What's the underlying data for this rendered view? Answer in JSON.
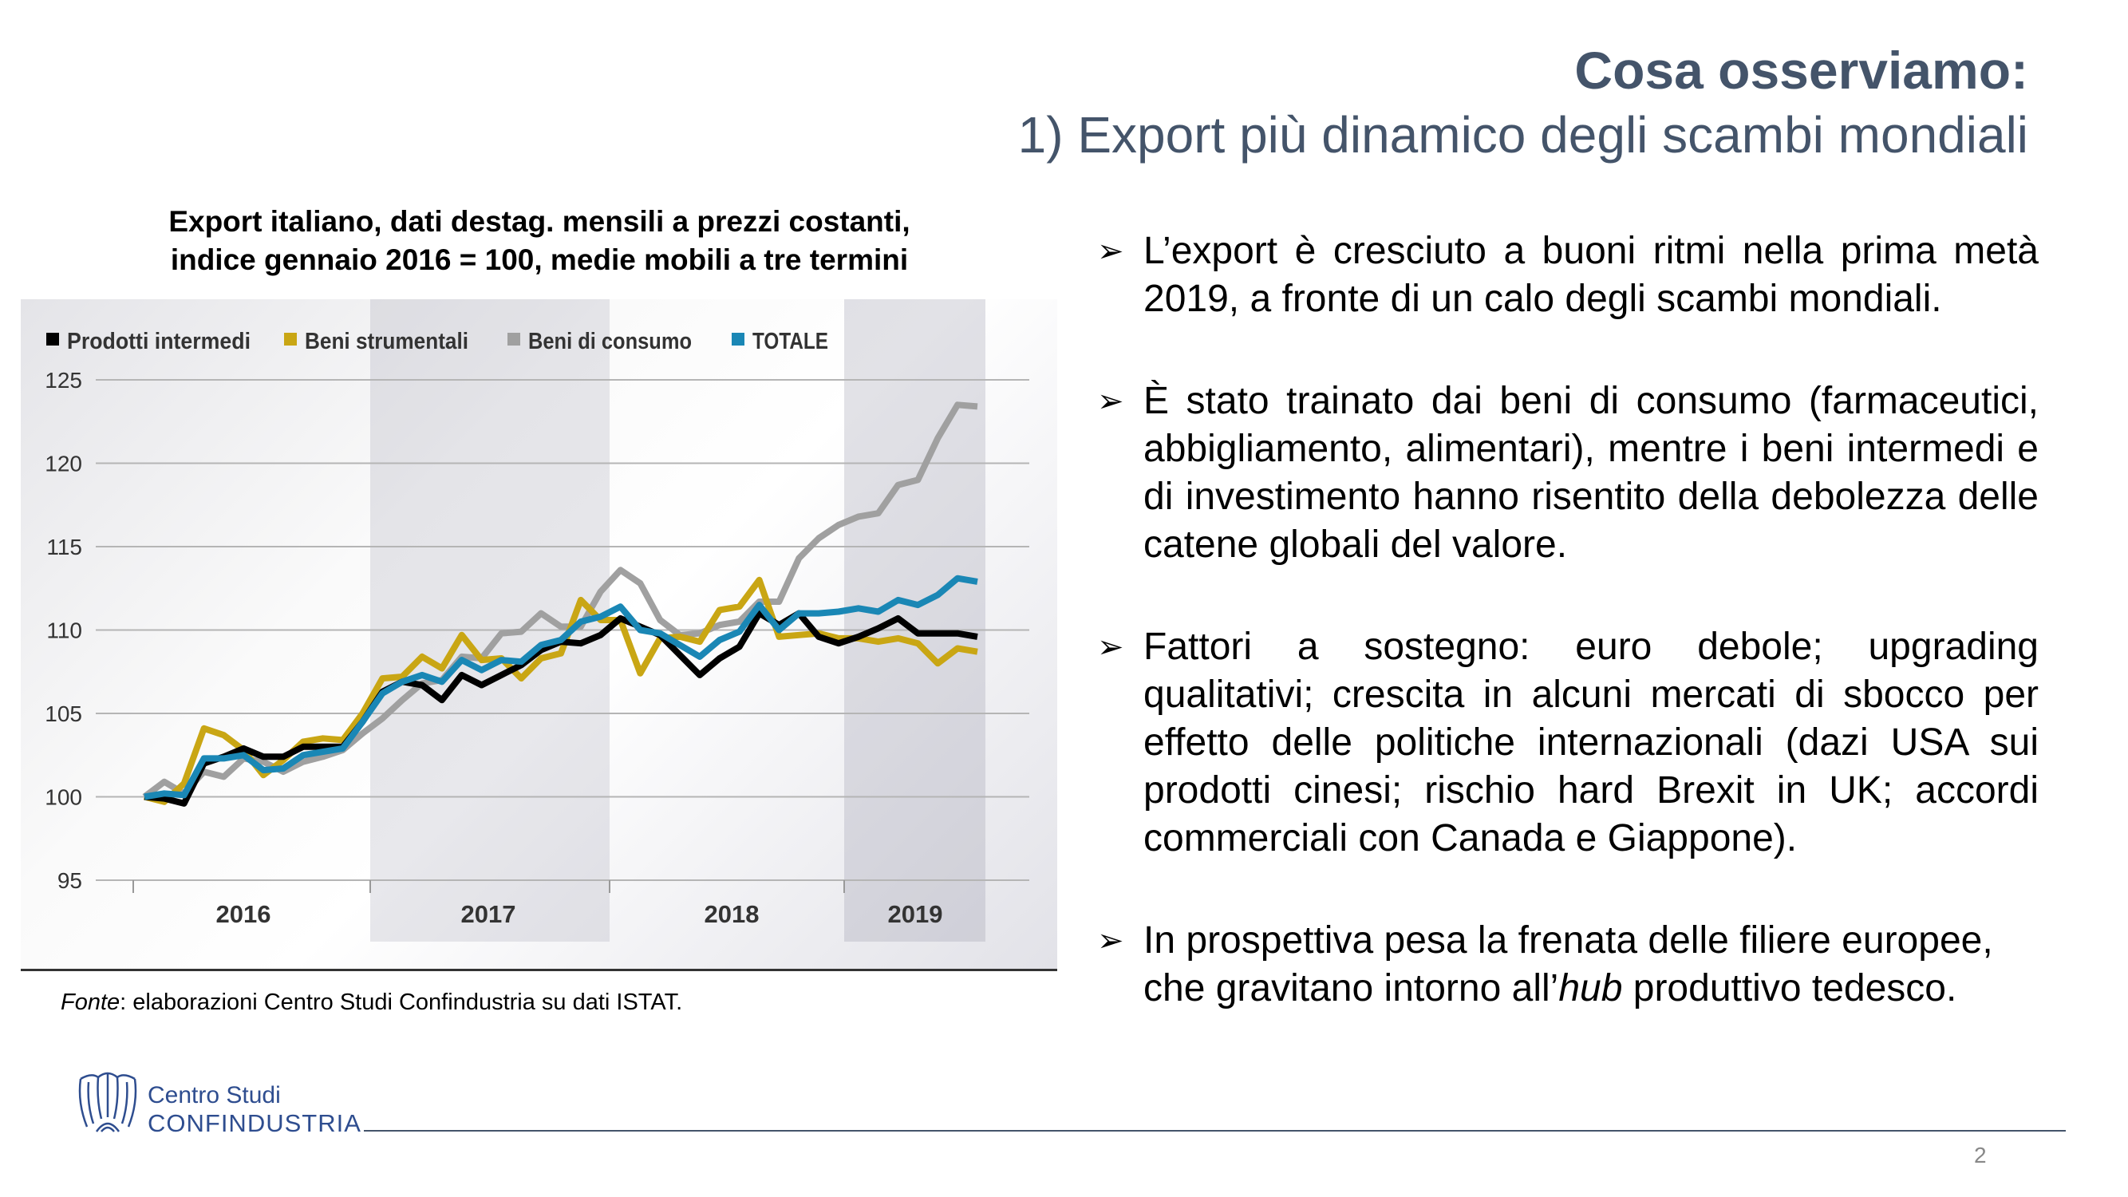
{
  "header": {
    "title": "Cosa osserviamo:",
    "subtitle": "1) Export più dinamico degli scambi mondiali"
  },
  "chart_title": {
    "line1": "Export italiano, dati destag. mensili a prezzi costanti,",
    "line2": "indice gennaio 2016 = 100, medie mobili a tre termini"
  },
  "chart_data": {
    "type": "line",
    "title": "Export italiano, dati destag. mensili a prezzi costanti, indice gennaio 2016 = 100, medie mobili a tre termini",
    "xlabel": "",
    "ylabel": "",
    "x_start": "2016-01",
    "frequency": "monthly",
    "year_labels": [
      "2016",
      "2017",
      "2018",
      "2019"
    ],
    "yticks": [
      125,
      120,
      115,
      110,
      105,
      100,
      95
    ],
    "ylim": [
      95,
      125
    ],
    "grid": true,
    "legend_position": "top-left",
    "series": [
      {
        "name": "Prodotti intermedi",
        "color": "#000000",
        "values": [
          100,
          99.9,
          99.6,
          102.0,
          102.4,
          102.9,
          102.4,
          102.4,
          103.0,
          103.0,
          103.0,
          104.5,
          106.3,
          106.9,
          106.7,
          105.8,
          107.3,
          106.7,
          107.3,
          107.9,
          108.8,
          109.3,
          109.2,
          109.7,
          110.7,
          110.2,
          109.7,
          108.5,
          107.3,
          108.3,
          109.0,
          111.0,
          110.3,
          111.0,
          109.6,
          109.2,
          109.6,
          110.1,
          110.7,
          109.8,
          109.8,
          109.8,
          109.6
        ]
      },
      {
        "name": "Beni strumentali",
        "color": "#c9a614",
        "values": [
          100,
          99.7,
          100.8,
          104.1,
          103.7,
          102.8,
          101.3,
          102.2,
          103.3,
          103.5,
          103.4,
          105.0,
          107.1,
          107.2,
          108.4,
          107.7,
          109.7,
          108.2,
          108.3,
          107.1,
          108.3,
          108.6,
          111.8,
          110.6,
          110.6,
          107.4,
          109.5,
          109.6,
          109.3,
          111.2,
          111.4,
          113.0,
          109.6,
          109.7,
          109.8,
          109.5,
          109.5,
          109.3,
          109.5,
          109.2,
          108.0,
          108.9,
          108.7
        ]
      },
      {
        "name": "Beni di consumo",
        "color": "#a0a0a0",
        "values": [
          100,
          100.9,
          100.2,
          101.5,
          101.2,
          102.3,
          102.1,
          101.5,
          102.1,
          102.4,
          102.8,
          103.8,
          104.7,
          105.8,
          106.8,
          107.0,
          108.4,
          108.3,
          109.8,
          109.9,
          111.0,
          110.2,
          110.2,
          112.3,
          113.6,
          112.8,
          110.6,
          109.7,
          109.8,
          110.3,
          110.5,
          111.7,
          111.7,
          114.3,
          115.5,
          116.3,
          116.8,
          117.0,
          118.7,
          119.0,
          121.5,
          123.5,
          123.4
        ]
      },
      {
        "name": "TOTALE",
        "color": "#1a87b5",
        "values": [
          100,
          100.2,
          100.1,
          102.3,
          102.3,
          102.5,
          101.6,
          101.7,
          102.5,
          102.7,
          102.9,
          104.5,
          106.2,
          106.9,
          107.3,
          106.9,
          108.2,
          107.6,
          108.2,
          108.1,
          109.1,
          109.4,
          110.5,
          110.8,
          111.4,
          110.0,
          109.8,
          109.1,
          108.4,
          109.4,
          109.9,
          111.5,
          110.0,
          111.0,
          111.0,
          111.1,
          111.3,
          111.1,
          111.8,
          111.5,
          112.1,
          113.1,
          112.9
        ]
      }
    ]
  },
  "source": {
    "label": "Fonte",
    "text": ": elaborazioni Centro Studi Confindustria su dati ISTAT."
  },
  "bullets": [
    {
      "text": "L’export è cresciuto a buoni ritmi nella prima metà 2019, a fronte di un calo degli scambi mondiali."
    },
    {
      "text": "È stato trainato dai beni di consumo (farmaceutici, abbigliamento, alimentari), mentre i beni intermedi e di investimento hanno risentito della debolezza delle catene globali del valore."
    },
    {
      "text": "Fattori a sostegno: euro debole; upgrading qualitativi; crescita in alcuni mercati di sbocco per effetto delle politiche internazionali (dazi USA sui prodotti cinesi; rischio hard Brexit in UK; accordi commerciali con Canada e Giappone)."
    },
    {
      "text_before": "In prospettiva pesa la frenata delle filiere europee, che gravitano intorno all’",
      "text_italic": "hub",
      "text_after": " produttivo tedesco."
    }
  ],
  "bullet_icon": "arrow-right-icon",
  "logo": {
    "line1": "Centro Studi",
    "line2": "CONFINDUSTRIA",
    "color": "#2e4d8f"
  },
  "page_number": "2"
}
